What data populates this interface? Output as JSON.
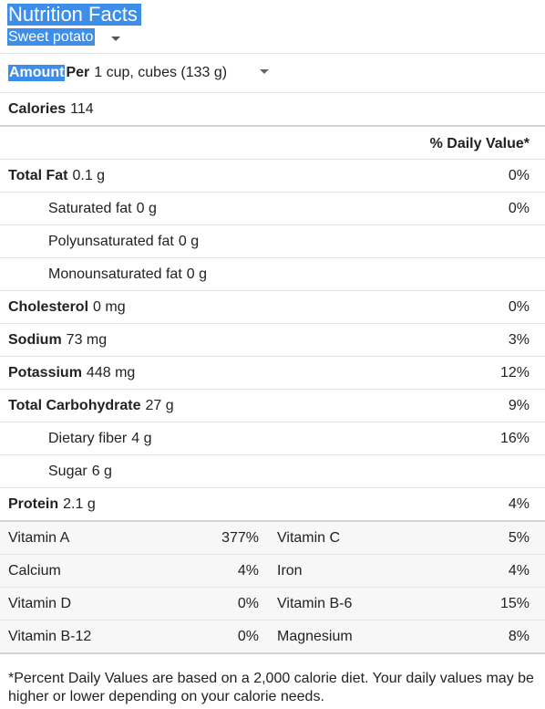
{
  "header": {
    "title": "Nutrition Facts",
    "food": "Sweet potato"
  },
  "serving": {
    "amount_label": "Amount",
    "per_label": "Per",
    "value": "1 cup, cubes (133 g)"
  },
  "calories": {
    "label": "Calories",
    "value": "114"
  },
  "dv_header": "% Daily Value*",
  "nutrients": [
    {
      "label": "Total Fat",
      "amount": "0.1 g",
      "dv": "0%"
    },
    {
      "label": "Saturated fat",
      "amount": "0 g",
      "dv": "0%"
    },
    {
      "label": "Polyunsaturated fat",
      "amount": "0 g",
      "dv": ""
    },
    {
      "label": "Monounsaturated fat",
      "amount": "0 g",
      "dv": ""
    },
    {
      "label": "Cholesterol",
      "amount": "0 mg",
      "dv": "0%"
    },
    {
      "label": "Sodium",
      "amount": "73 mg",
      "dv": "3%"
    },
    {
      "label": "Potassium",
      "amount": "448 mg",
      "dv": "12%"
    },
    {
      "label": "Total Carbohydrate",
      "amount": "27 g",
      "dv": "9%"
    },
    {
      "label": "Dietary fiber",
      "amount": "4 g",
      "dv": "16%"
    },
    {
      "label": "Sugar",
      "amount": "6 g",
      "dv": ""
    },
    {
      "label": "Protein",
      "amount": "2.1 g",
      "dv": "4%"
    }
  ],
  "vitamins": [
    {
      "left_name": "Vitamin A",
      "left_dv": "377%",
      "right_name": "Vitamin C",
      "right_dv": "5%"
    },
    {
      "left_name": "Calcium",
      "left_dv": "4%",
      "right_name": "Iron",
      "right_dv": "4%"
    },
    {
      "left_name": "Vitamin D",
      "left_dv": "0%",
      "right_name": "Vitamin B-6",
      "right_dv": "15%"
    },
    {
      "left_name": "Vitamin B-12",
      "left_dv": "0%",
      "right_name": "Magnesium",
      "right_dv": "8%"
    }
  ],
  "footnote": "*Percent Daily Values are based on a 2,000 calorie diet. Your daily values may be higher or lower depending on your calorie needs.",
  "colors": {
    "selection": "#3d8ee8",
    "text": "#222222",
    "vitamin_bg": "#f7f7f7",
    "divider": "#e4e4e4"
  }
}
